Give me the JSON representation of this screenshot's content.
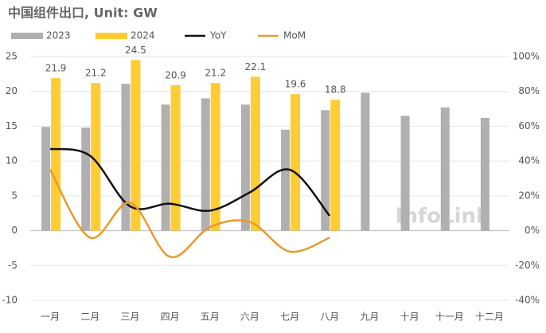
{
  "chart_data": {
    "type": "bar_line",
    "title": "中国组件出口, Unit: GW",
    "annotation": "InfoLink",
    "categories": [
      "一月",
      "二月",
      "三月",
      "四月",
      "五月",
      "六月",
      "七月",
      "八月",
      "九月",
      "十月",
      "十一月",
      "十二月"
    ],
    "series": [
      {
        "name": "2023",
        "kind": "bar",
        "color": "#b0b0b0",
        "values": [
          14.9,
          14.8,
          21.1,
          18.1,
          19.0,
          18.1,
          14.5,
          17.3,
          19.8,
          16.5,
          17.7,
          16.2
        ]
      },
      {
        "name": "2024",
        "kind": "bar",
        "color": "#ffcc33",
        "values": [
          21.9,
          21.2,
          24.5,
          20.9,
          21.2,
          22.1,
          19.6,
          18.8,
          null,
          null,
          null,
          null
        ],
        "data_labels": true
      },
      {
        "name": "YoY",
        "kind": "line",
        "axis": "y2",
        "color": "#111111",
        "values": [
          47,
          43,
          14,
          15.5,
          11.5,
          22,
          35,
          8.5,
          null,
          null,
          null,
          null
        ]
      },
      {
        "name": "MoM",
        "kind": "line",
        "axis": "y2",
        "color": "#e89a2a",
        "values": [
          35,
          -4,
          16,
          -15,
          2,
          5,
          -12,
          -4,
          null,
          null,
          null,
          null
        ]
      }
    ],
    "ylim": [
      -10,
      25
    ],
    "yticks": [
      -10,
      -5,
      0,
      5,
      10,
      15,
      20,
      25
    ],
    "y2lim": [
      -40,
      100
    ],
    "y2ticks": [
      {
        "value": -40,
        "label": "-40%"
      },
      {
        "value": -20,
        "label": "-20%"
      },
      {
        "value": 0,
        "label": "0%"
      },
      {
        "value": 20,
        "label": "20%"
      },
      {
        "value": 40,
        "label": "40%"
      },
      {
        "value": 60,
        "label": "60%"
      },
      {
        "value": 80,
        "label": "80%"
      },
      {
        "value": 100,
        "label": "100%"
      }
    ],
    "grid": true,
    "legend": "top"
  }
}
